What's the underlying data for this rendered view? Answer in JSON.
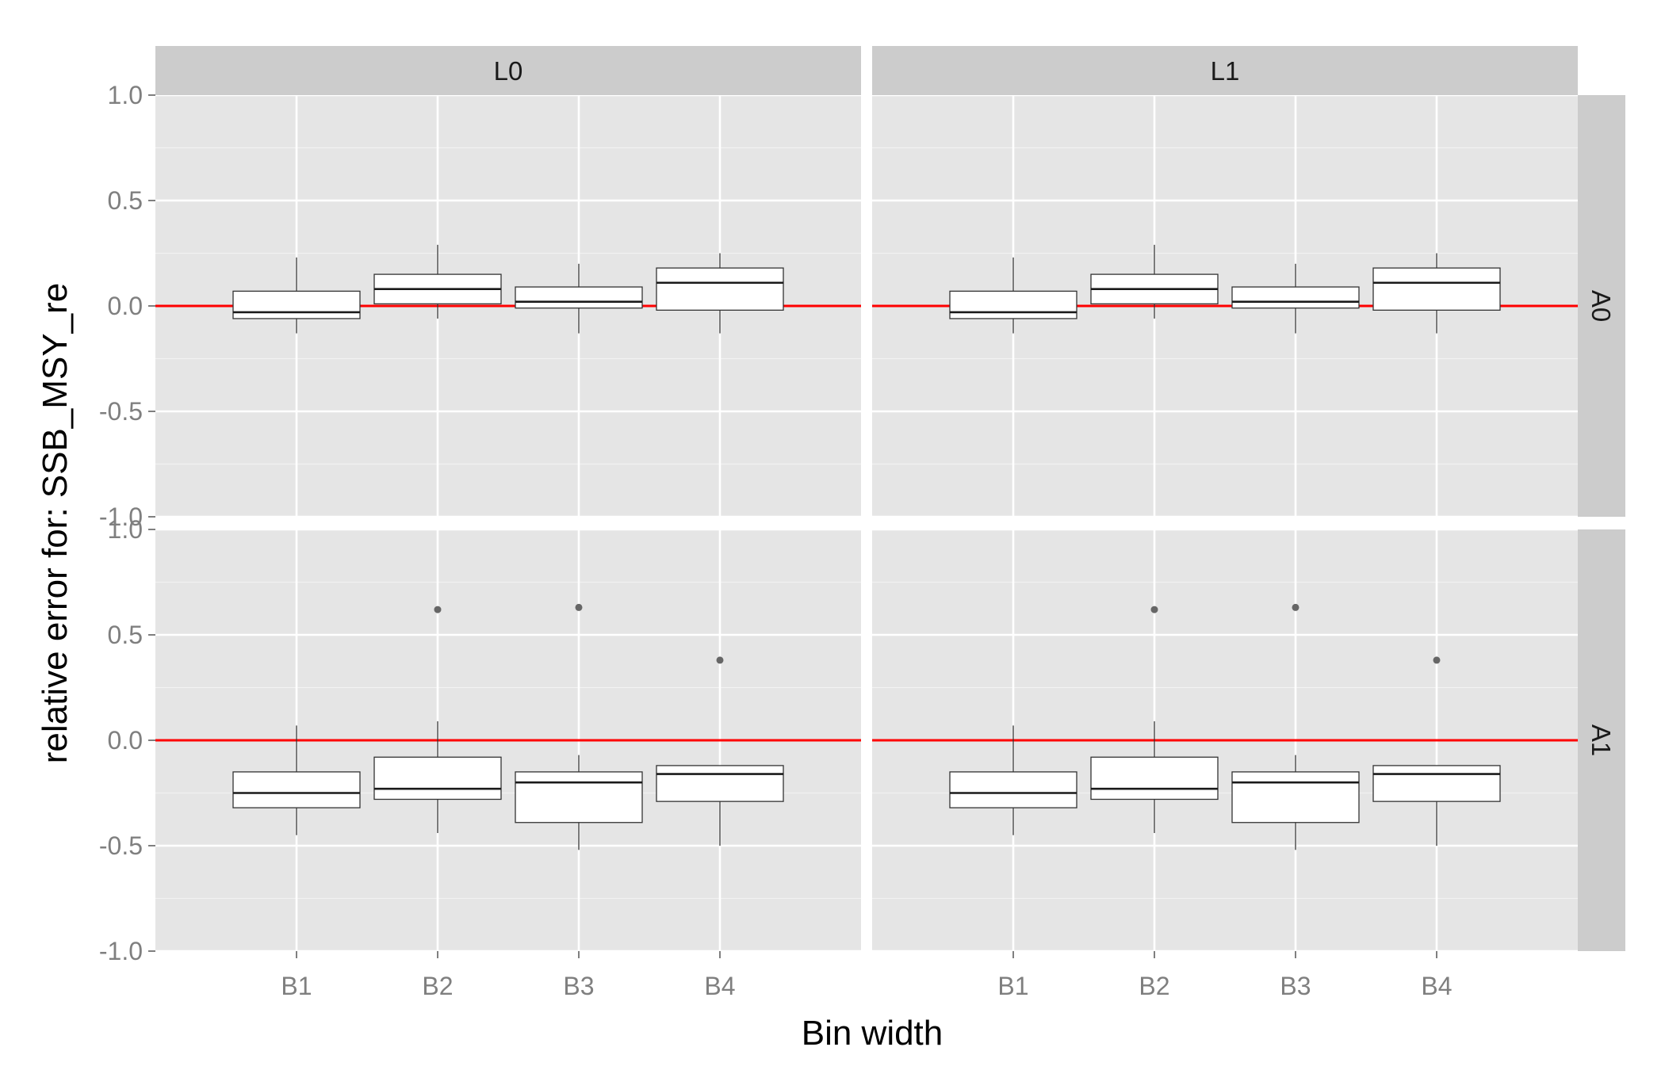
{
  "chart_data": {
    "type": "boxplot",
    "xlabel": "Bin width",
    "ylabel": "relative error for: SSB_MSY_re",
    "ylim": [
      -1.0,
      1.0
    ],
    "yticks": [
      -1.0,
      -0.5,
      0.0,
      0.5,
      1.0
    ],
    "ytick_labels": [
      "-1.0",
      "-0.5",
      "0.0",
      "0.5",
      "1.0"
    ],
    "categories": [
      "B1",
      "B2",
      "B3",
      "B4"
    ],
    "facet_columns": [
      "L0",
      "L1"
    ],
    "facet_rows": [
      "A0",
      "A1"
    ],
    "reference_line": {
      "y": 0.0,
      "color": "#ff0000"
    },
    "grid": true,
    "panel_background": "#e5e5e5",
    "strip_background": "#cccccc",
    "outlier_color": "#666666",
    "panels": [
      {
        "col": "L0",
        "row": "A0",
        "boxes": [
          {
            "category": "B1",
            "whisker_low": -0.13,
            "q1": -0.06,
            "median": -0.03,
            "q3": 0.07,
            "whisker_high": 0.23,
            "outliers": []
          },
          {
            "category": "B2",
            "whisker_low": -0.06,
            "q1": 0.01,
            "median": 0.08,
            "q3": 0.15,
            "whisker_high": 0.29,
            "outliers": []
          },
          {
            "category": "B3",
            "whisker_low": -0.13,
            "q1": -0.01,
            "median": 0.02,
            "q3": 0.09,
            "whisker_high": 0.2,
            "outliers": []
          },
          {
            "category": "B4",
            "whisker_low": -0.13,
            "q1": -0.02,
            "median": 0.11,
            "q3": 0.18,
            "whisker_high": 0.25,
            "outliers": []
          }
        ]
      },
      {
        "col": "L1",
        "row": "A0",
        "boxes": [
          {
            "category": "B1",
            "whisker_low": -0.13,
            "q1": -0.06,
            "median": -0.03,
            "q3": 0.07,
            "whisker_high": 0.23,
            "outliers": []
          },
          {
            "category": "B2",
            "whisker_low": -0.06,
            "q1": 0.01,
            "median": 0.08,
            "q3": 0.15,
            "whisker_high": 0.29,
            "outliers": []
          },
          {
            "category": "B3",
            "whisker_low": -0.13,
            "q1": -0.01,
            "median": 0.02,
            "q3": 0.09,
            "whisker_high": 0.2,
            "outliers": []
          },
          {
            "category": "B4",
            "whisker_low": -0.13,
            "q1": -0.02,
            "median": 0.11,
            "q3": 0.18,
            "whisker_high": 0.25,
            "outliers": []
          }
        ]
      },
      {
        "col": "L0",
        "row": "A1",
        "boxes": [
          {
            "category": "B1",
            "whisker_low": -0.45,
            "q1": -0.32,
            "median": -0.25,
            "q3": -0.15,
            "whisker_high": 0.07,
            "outliers": []
          },
          {
            "category": "B2",
            "whisker_low": -0.44,
            "q1": -0.28,
            "median": -0.23,
            "q3": -0.08,
            "whisker_high": 0.09,
            "outliers": [
              0.62
            ]
          },
          {
            "category": "B3",
            "whisker_low": -0.52,
            "q1": -0.39,
            "median": -0.2,
            "q3": -0.15,
            "whisker_high": -0.07,
            "outliers": [
              0.63
            ]
          },
          {
            "category": "B4",
            "whisker_low": -0.5,
            "q1": -0.29,
            "median": -0.16,
            "q3": -0.12,
            "whisker_high": -0.12,
            "outliers": [
              0.38
            ]
          }
        ]
      },
      {
        "col": "L1",
        "row": "A1",
        "boxes": [
          {
            "category": "B1",
            "whisker_low": -0.45,
            "q1": -0.32,
            "median": -0.25,
            "q3": -0.15,
            "whisker_high": 0.07,
            "outliers": []
          },
          {
            "category": "B2",
            "whisker_low": -0.44,
            "q1": -0.28,
            "median": -0.23,
            "q3": -0.08,
            "whisker_high": 0.09,
            "outliers": [
              0.62
            ]
          },
          {
            "category": "B3",
            "whisker_low": -0.52,
            "q1": -0.39,
            "median": -0.2,
            "q3": -0.15,
            "whisker_high": -0.07,
            "outliers": [
              0.63
            ]
          },
          {
            "category": "B4",
            "whisker_low": -0.5,
            "q1": -0.29,
            "median": -0.16,
            "q3": -0.12,
            "whisker_high": -0.12,
            "outliers": [
              0.38
            ]
          }
        ]
      }
    ]
  }
}
